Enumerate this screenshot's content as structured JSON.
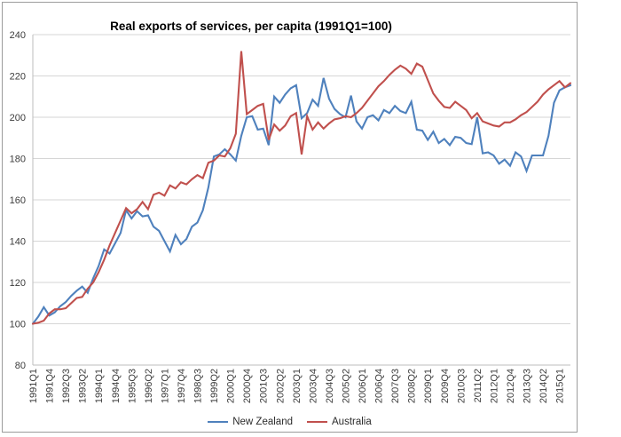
{
  "title": "Real exports of services, per capita (1991Q1=100)",
  "legend": {
    "items": [
      {
        "label": "New Zealand",
        "color": "#4F81BD"
      },
      {
        "label": "Australia",
        "color": "#C0504D"
      }
    ]
  },
  "colors": {
    "gridline": "#d6d6d6",
    "axis_line": "#bdbdbd",
    "tick_text": "#3c3c3c",
    "frame_border": "#9c9c9c",
    "new_zealand": "#4F81BD",
    "australia": "#C0504D"
  },
  "chart_data": {
    "type": "line",
    "title": "Real exports of services, per capita (1991Q1=100)",
    "xlabel": "",
    "ylabel": "",
    "ylim": [
      80,
      240
    ],
    "y_ticks": [
      240,
      220,
      200,
      180,
      160,
      140,
      120,
      100,
      80
    ],
    "x_tick_every": 3,
    "grid": true,
    "legend_position": "bottom",
    "x": [
      "1991Q1",
      "1991Q2",
      "1991Q3",
      "1991Q4",
      "1992Q1",
      "1992Q2",
      "1992Q3",
      "1992Q4",
      "1993Q1",
      "1993Q2",
      "1993Q3",
      "1993Q4",
      "1994Q1",
      "1994Q2",
      "1994Q3",
      "1994Q4",
      "1995Q1",
      "1995Q2",
      "1995Q3",
      "1995Q4",
      "1996Q1",
      "1996Q2",
      "1996Q3",
      "1996Q4",
      "1997Q1",
      "1997Q2",
      "1997Q3",
      "1997Q4",
      "1998Q1",
      "1998Q2",
      "1998Q3",
      "1998Q4",
      "1999Q1",
      "1999Q2",
      "1999Q3",
      "1999Q4",
      "2000Q1",
      "2000Q2",
      "2000Q3",
      "2000Q4",
      "2001Q1",
      "2001Q2",
      "2001Q3",
      "2001Q4",
      "2002Q1",
      "2002Q2",
      "2002Q3",
      "2002Q4",
      "2003Q1",
      "2003Q2",
      "2003Q3",
      "2003Q4",
      "2004Q1",
      "2004Q2",
      "2004Q3",
      "2004Q4",
      "2005Q1",
      "2005Q2",
      "2005Q3",
      "2005Q4",
      "2006Q1",
      "2006Q2",
      "2006Q3",
      "2006Q4",
      "2007Q1",
      "2007Q2",
      "2007Q3",
      "2007Q4",
      "2008Q1",
      "2008Q2",
      "2008Q3",
      "2008Q4",
      "2009Q1",
      "2009Q2",
      "2009Q3",
      "2009Q4",
      "2010Q1",
      "2010Q2",
      "2010Q3",
      "2010Q4",
      "2011Q1",
      "2011Q2",
      "2011Q3",
      "2011Q4",
      "2012Q1",
      "2012Q2",
      "2012Q3",
      "2012Q4",
      "2013Q1",
      "2013Q2",
      "2013Q3",
      "2013Q4",
      "2014Q1",
      "2014Q2",
      "2014Q3",
      "2014Q4",
      "2015Q1",
      "2015Q2",
      "2015Q3"
    ],
    "series": [
      {
        "name": "New Zealand",
        "color": "#4F81BD",
        "values": [
          100,
          103.5,
          108,
          104,
          105.5,
          108.5,
          110.5,
          113.5,
          116,
          118,
          115,
          122,
          128,
          136,
          134,
          139,
          144,
          155,
          151,
          154.5,
          152,
          152.5,
          147,
          145,
          140,
          135,
          143,
          138.5,
          141,
          147,
          149,
          155,
          166,
          181,
          182,
          184.5,
          182,
          179,
          191,
          200,
          200.5,
          194,
          194.5,
          186.5,
          210,
          207,
          211,
          214,
          215.5,
          199.5,
          202,
          208.5,
          205.5,
          219,
          209,
          204,
          201.5,
          200,
          210.5,
          198,
          194.5,
          200,
          201,
          198.5,
          203.5,
          202,
          205.5,
          203,
          202,
          207.5,
          194,
          193.5,
          189,
          193,
          187.5,
          189.5,
          186.5,
          190.5,
          190,
          187.5,
          187,
          200,
          182.5,
          183,
          181.5,
          177.5,
          179.5,
          176.5,
          183,
          181,
          174,
          181.5,
          181.5,
          181.5,
          191,
          207,
          213,
          214.5,
          215.5
        ]
      },
      {
        "name": "Australia",
        "color": "#C0504D",
        "values": [
          100,
          100.5,
          101.5,
          105,
          107,
          107,
          107.5,
          110,
          112.5,
          113,
          117,
          120,
          125,
          131,
          138,
          144,
          150,
          156,
          153.5,
          155.5,
          159,
          155.5,
          162.5,
          163.5,
          162,
          167,
          165.5,
          168.5,
          167.5,
          170,
          172,
          170.5,
          178,
          179,
          181.5,
          181,
          185,
          192,
          232,
          201.5,
          203.5,
          205.5,
          206.5,
          189,
          196.5,
          193.5,
          196,
          200.5,
          202,
          182,
          200.5,
          194,
          197.5,
          194.5,
          197,
          199,
          199.5,
          200.5,
          200,
          202,
          204.5,
          208,
          211.5,
          215,
          217.5,
          220.5,
          223,
          225,
          223.5,
          221,
          226,
          224.5,
          218,
          211.5,
          208,
          205,
          204.5,
          207.5,
          205.5,
          203.5,
          199.5,
          202,
          198,
          197,
          196,
          195.5,
          197.5,
          197.5,
          199,
          201,
          202.5,
          205,
          207.5,
          211,
          213.5,
          215.5,
          217.5,
          214.5,
          216.5
        ]
      }
    ]
  }
}
